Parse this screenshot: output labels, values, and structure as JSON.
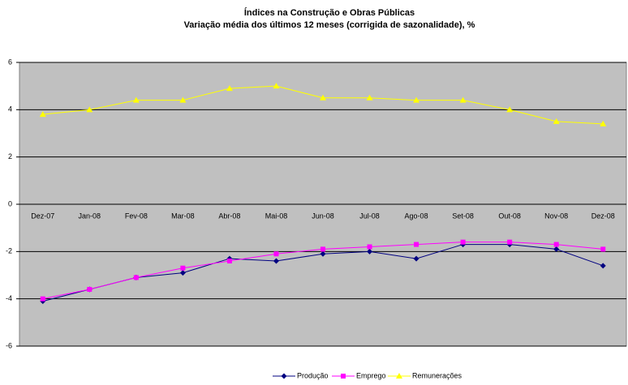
{
  "chart_data": {
    "type": "line",
    "title": "Índices na Construção e Obras Públicas",
    "subtitle": "Variação média dos últimos 12 meses (corrigida de sazonalidade), %",
    "categories": [
      "Dez-07",
      "Jan-08",
      "Fev-08",
      "Mar-08",
      "Abr-08",
      "Mai-08",
      "Jun-08",
      "Jul-08",
      "Ago-08",
      "Set-08",
      "Out-08",
      "Nov-08",
      "Dez-08"
    ],
    "series": [
      {
        "name": "Produção",
        "color": "#000080",
        "marker": "diamond",
        "values": [
          -4.1,
          -3.6,
          -3.1,
          -2.9,
          -2.3,
          -2.4,
          -2.1,
          -2.0,
          -2.3,
          -1.7,
          -1.7,
          -1.9,
          -2.6
        ]
      },
      {
        "name": "Emprego",
        "color": "#ff00ff",
        "marker": "square",
        "values": [
          -4.0,
          -3.6,
          -3.1,
          -2.7,
          -2.4,
          -2.1,
          -1.9,
          -1.8,
          -1.7,
          -1.6,
          -1.6,
          -1.7,
          -1.9
        ]
      },
      {
        "name": "Remunerações",
        "color": "#ffff00",
        "marker": "triangle",
        "values": [
          3.8,
          4.0,
          4.4,
          4.4,
          4.9,
          5.0,
          4.5,
          4.5,
          4.4,
          4.4,
          4.0,
          3.5,
          3.4
        ]
      }
    ],
    "ylim": [
      -6,
      6
    ],
    "yticks": [
      -6,
      -4,
      -2,
      0,
      2,
      4,
      6
    ],
    "grid": true,
    "legend": "bottom"
  }
}
